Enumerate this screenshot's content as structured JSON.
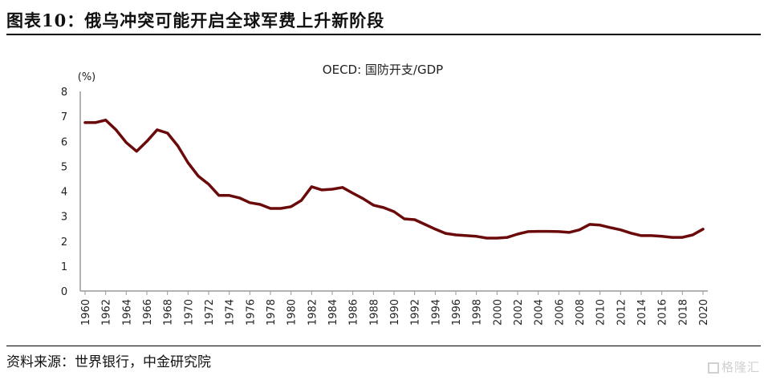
{
  "page": {
    "figure_title": "图表10：俄乌冲突可能开启全球军费上升新阶段",
    "source": "资料来源：世界银行，中金研究院",
    "watermark": "格隆汇"
  },
  "chart_data": {
    "type": "line",
    "title": "OECD: 国防开支/GDP",
    "xlabel": "",
    "ylabel": "(%)",
    "ylim": [
      0,
      8
    ],
    "yticks": [
      "0",
      "1",
      "2",
      "3",
      "4",
      "5",
      "6",
      "7",
      "8"
    ],
    "xticks": [
      "1960",
      "1962",
      "1964",
      "1966",
      "1968",
      "1970",
      "1972",
      "1974",
      "1976",
      "1978",
      "1980",
      "1982",
      "1984",
      "1986",
      "1988",
      "1990",
      "1992",
      "1994",
      "1996",
      "1998",
      "2000",
      "2002",
      "2004",
      "2006",
      "2008",
      "2010",
      "2012",
      "2014",
      "2016",
      "2018",
      "2020"
    ],
    "grid": false,
    "legend": "none",
    "line_color": "#6B0A0A",
    "series": [
      {
        "name": "OECD: 国防开支/GDP",
        "x": [
          1960,
          1961,
          1962,
          1963,
          1964,
          1965,
          1966,
          1967,
          1968,
          1969,
          1970,
          1971,
          1972,
          1973,
          1974,
          1975,
          1976,
          1977,
          1978,
          1979,
          1980,
          1981,
          1982,
          1983,
          1984,
          1985,
          1986,
          1987,
          1988,
          1989,
          1990,
          1991,
          1992,
          1993,
          1994,
          1995,
          1996,
          1997,
          1998,
          1999,
          2000,
          2001,
          2002,
          2003,
          2004,
          2005,
          2006,
          2007,
          2008,
          2009,
          2010,
          2011,
          2012,
          2013,
          2014,
          2015,
          2016,
          2017,
          2018,
          2019,
          2020
        ],
        "values": [
          6.75,
          6.75,
          6.85,
          6.46,
          5.95,
          5.6,
          6.0,
          6.46,
          6.33,
          5.82,
          5.14,
          4.6,
          4.28,
          3.83,
          3.83,
          3.73,
          3.54,
          3.47,
          3.31,
          3.31,
          3.38,
          3.63,
          4.18,
          4.05,
          4.08,
          4.15,
          3.92,
          3.7,
          3.44,
          3.34,
          3.18,
          2.89,
          2.86,
          2.67,
          2.48,
          2.31,
          2.25,
          2.22,
          2.19,
          2.12,
          2.12,
          2.15,
          2.28,
          2.38,
          2.39,
          2.39,
          2.38,
          2.35,
          2.45,
          2.67,
          2.64,
          2.54,
          2.45,
          2.32,
          2.22,
          2.22,
          2.19,
          2.15,
          2.15,
          2.25,
          2.48
        ]
      }
    ]
  }
}
